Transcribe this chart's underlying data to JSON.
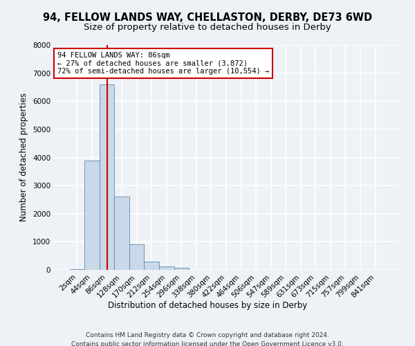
{
  "title": "94, FELLOW LANDS WAY, CHELLASTON, DERBY, DE73 6WD",
  "subtitle": "Size of property relative to detached houses in Derby",
  "xlabel": "Distribution of detached houses by size in Derby",
  "ylabel": "Number of detached properties",
  "categories": [
    "2sqm",
    "44sqm",
    "86sqm",
    "128sqm",
    "170sqm",
    "212sqm",
    "254sqm",
    "296sqm",
    "338sqm",
    "380sqm",
    "422sqm",
    "464sqm",
    "506sqm",
    "547sqm",
    "589sqm",
    "631sqm",
    "673sqm",
    "715sqm",
    "757sqm",
    "799sqm",
    "841sqm"
  ],
  "values": [
    20,
    3900,
    6600,
    2600,
    900,
    300,
    130,
    80,
    0,
    0,
    0,
    0,
    0,
    0,
    0,
    0,
    0,
    0,
    0,
    0,
    0
  ],
  "bar_color": "#c9d9e8",
  "bar_edge_color": "#5a8ab0",
  "redline_index": 2,
  "annotation_line1": "94 FELLOW LANDS WAY: 86sqm",
  "annotation_line2": "← 27% of detached houses are smaller (3,872)",
  "annotation_line3": "72% of semi-detached houses are larger (10,554) →",
  "annotation_box_color": "#ffffff",
  "annotation_box_edge": "#cc0000",
  "redline_color": "#cc0000",
  "footer_line1": "Contains HM Land Registry data © Crown copyright and database right 2024.",
  "footer_line2": "Contains public sector information licensed under the Open Government Licence v3.0.",
  "ylim": [
    0,
    8000
  ],
  "yticks": [
    0,
    1000,
    2000,
    3000,
    4000,
    5000,
    6000,
    7000,
    8000
  ],
  "background_color": "#eef2f7",
  "plot_bg_color": "#eef2f7",
  "grid_color": "#ffffff",
  "title_fontsize": 10.5,
  "subtitle_fontsize": 9.5,
  "axis_label_fontsize": 8.5,
  "tick_fontsize": 7.5,
  "annotation_fontsize": 7.5,
  "footer_fontsize": 6.5
}
